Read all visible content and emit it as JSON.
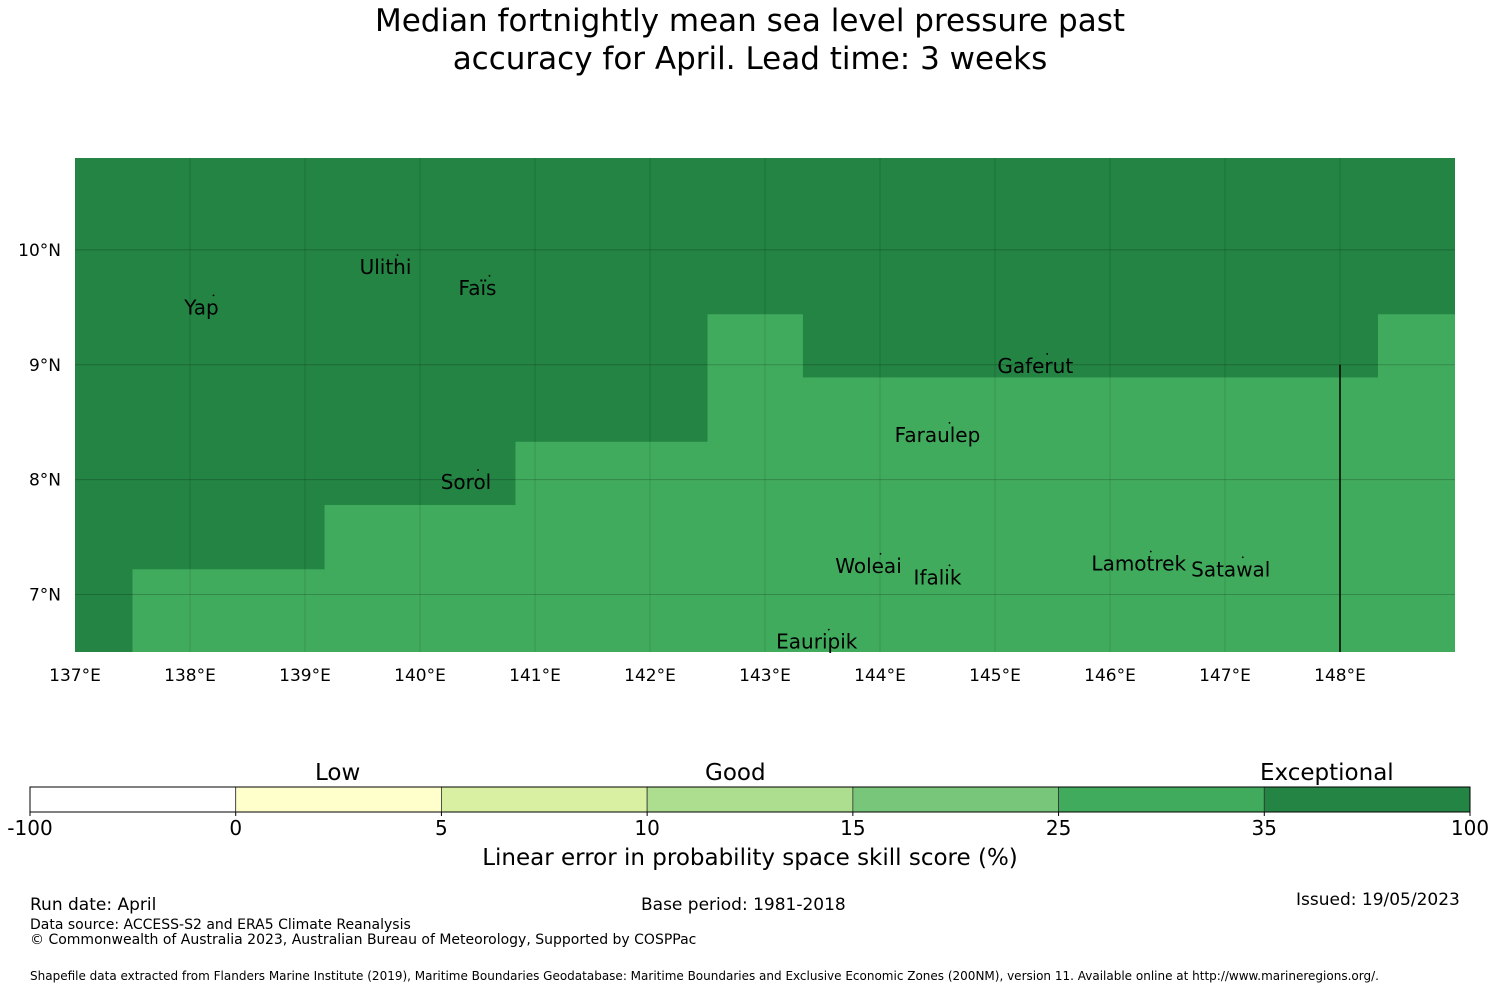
{
  "title": {
    "line1": "Median fortnightly mean sea level pressure past",
    "line2": "accuracy for April. Lead time: 3 weeks"
  },
  "map": {
    "x_axis": {
      "range": [
        137.0,
        149.0
      ],
      "ticks": [
        137,
        138,
        139,
        140,
        141,
        142,
        143,
        144,
        145,
        146,
        147,
        148
      ],
      "tick_labels": [
        "137°E",
        "138°E",
        "139°E",
        "140°E",
        "141°E",
        "142°E",
        "143°E",
        "144°E",
        "145°E",
        "146°E",
        "147°E",
        "148°E"
      ]
    },
    "y_axis": {
      "range": [
        6.5,
        10.8
      ],
      "ticks": [
        7,
        8,
        9,
        10
      ],
      "tick_labels": [
        "7°N",
        "8°N",
        "9°N",
        "10°N"
      ]
    },
    "grid": true,
    "categories": {
      "exceptional": {
        "color": "#238443",
        "range": "35 to 100"
      },
      "good_high": {
        "color": "#41ab5d",
        "range": "25 to 35"
      }
    },
    "good_high_region_lat_steps": [
      {
        "lon_from": 137.5,
        "lon_to": 139.17,
        "lat_top": 7.22
      },
      {
        "lon_from": 139.17,
        "lon_to": 140.83,
        "lat_top": 7.78
      },
      {
        "lon_from": 140.83,
        "lon_to": 142.5,
        "lat_top": 8.33
      },
      {
        "lon_from": 142.5,
        "lon_to": 143.33,
        "lat_top": 9.44
      },
      {
        "lon_from": 143.33,
        "lon_to": 148.33,
        "lat_top": 8.89
      },
      {
        "lon_from": 148.33,
        "lon_to": 149.0,
        "lat_top": 9.44
      }
    ],
    "boundary_line": {
      "lon": 148.0,
      "lat_from": 6.5,
      "lat_to": 9.0
    },
    "places": [
      {
        "name": "Yap",
        "lon": 138.1,
        "lat": 9.5
      },
      {
        "name": "Ulithi",
        "lon": 139.7,
        "lat": 9.85
      },
      {
        "name": "Faïs",
        "lon": 140.5,
        "lat": 9.67
      },
      {
        "name": "Sorol",
        "lon": 140.4,
        "lat": 7.98
      },
      {
        "name": "Gaferut",
        "lon": 145.35,
        "lat": 8.99
      },
      {
        "name": "Faraulep",
        "lon": 144.5,
        "lat": 8.39
      },
      {
        "name": "Woleai",
        "lon": 143.9,
        "lat": 7.25
      },
      {
        "name": "Ifalik",
        "lon": 144.5,
        "lat": 7.15
      },
      {
        "name": "Lamotrek",
        "lon": 146.25,
        "lat": 7.27
      },
      {
        "name": "Satawal",
        "lon": 147.05,
        "lat": 7.22
      },
      {
        "name": "Eauripik",
        "lon": 143.45,
        "lat": 6.59
      }
    ]
  },
  "colorbar": {
    "bins": [
      {
        "from": -100,
        "to": 0,
        "color": "#ffffff"
      },
      {
        "from": 0,
        "to": 5,
        "color": "#ffffcc"
      },
      {
        "from": 5,
        "to": 10,
        "color": "#d9f0a3"
      },
      {
        "from": 10,
        "to": 15,
        "color": "#addd8e"
      },
      {
        "from": 15,
        "to": 25,
        "color": "#78c679"
      },
      {
        "from": 25,
        "to": 35,
        "color": "#41ab5d"
      },
      {
        "from": 35,
        "to": 100,
        "color": "#238443"
      }
    ],
    "tick_labels": [
      "-100",
      "0",
      "5",
      "10",
      "15",
      "25",
      "35",
      "100"
    ],
    "category_labels": {
      "low": "Low",
      "good": "Good",
      "exceptional": "Exceptional"
    },
    "title": "Linear error in probability space skill score (%)"
  },
  "footer": {
    "run_date": "Run date: April",
    "base_period": "Base period: 1981-2018",
    "issued": "Issued: 19/05/2023",
    "data_source": "Data source: ACCESS-S2 and ERA5 Climate Reanalysis",
    "copyright": "© Commonwealth of Australia 2023, Australian Bureau of Meteorology, Supported by COSPPac",
    "shapefile": "Shapefile data extracted from Flanders Marine Institute (2019), Maritime Boundaries Geodatabase: Maritime Boundaries and Exclusive Economic Zones (200NM), version 11. Available online at http://www.marineregions.org/."
  }
}
